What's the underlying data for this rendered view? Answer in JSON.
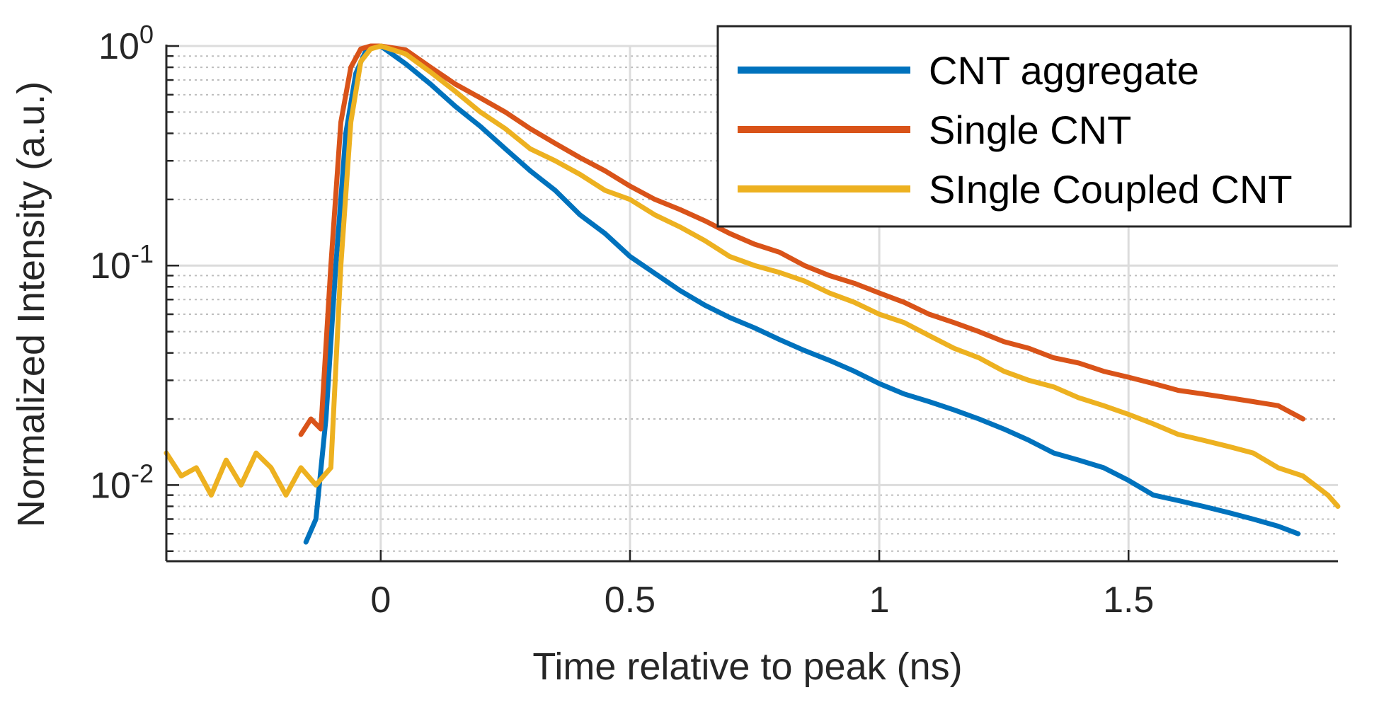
{
  "chart_data": {
    "type": "line",
    "xlabel": "Time relative to peak (ns)",
    "ylabel": "Normalized Intensity (a.u.)",
    "xlim": [
      -0.43,
      1.92
    ],
    "ylim": [
      0.0045,
      1.0
    ],
    "yscale": "log",
    "x_ticks": [
      0,
      0.5,
      1,
      1.5
    ],
    "x_tick_labels": [
      "0",
      "0.5",
      "1",
      "1.5"
    ],
    "y_ticks": [
      0.01,
      0.1,
      1
    ],
    "y_tick_labels": [
      {
        "base": "10",
        "exp": "-2"
      },
      {
        "base": "10",
        "exp": "-1"
      },
      {
        "base": "10",
        "exp": "0"
      }
    ],
    "grid": true,
    "minor_grid": true,
    "legend_position": "top-right",
    "series": [
      {
        "name": "CNT aggregate",
        "color": "#0072BD",
        "x": [
          -0.15,
          -0.13,
          -0.11,
          -0.09,
          -0.07,
          -0.05,
          -0.03,
          -0.01,
          0,
          0.05,
          0.1,
          0.15,
          0.2,
          0.25,
          0.3,
          0.35,
          0.4,
          0.45,
          0.5,
          0.55,
          0.6,
          0.65,
          0.7,
          0.75,
          0.8,
          0.85,
          0.9,
          0.95,
          1.0,
          1.05,
          1.1,
          1.15,
          1.2,
          1.25,
          1.3,
          1.35,
          1.4,
          1.45,
          1.5,
          1.55,
          1.6,
          1.65,
          1.7,
          1.75,
          1.8,
          1.84
        ],
        "y": [
          0.0055,
          0.007,
          0.02,
          0.1,
          0.4,
          0.75,
          0.95,
          1.0,
          1.0,
          0.83,
          0.67,
          0.53,
          0.43,
          0.34,
          0.27,
          0.22,
          0.17,
          0.14,
          0.11,
          0.092,
          0.077,
          0.066,
          0.058,
          0.052,
          0.046,
          0.041,
          0.037,
          0.033,
          0.029,
          0.026,
          0.024,
          0.022,
          0.02,
          0.018,
          0.016,
          0.014,
          0.013,
          0.012,
          0.0105,
          0.009,
          0.0085,
          0.008,
          0.0075,
          0.007,
          0.0065,
          0.006
        ]
      },
      {
        "name": "Single CNT",
        "color": "#D95319",
        "x": [
          -0.16,
          -0.14,
          -0.12,
          -0.1,
          -0.08,
          -0.06,
          -0.04,
          -0.02,
          0,
          0.05,
          0.1,
          0.15,
          0.2,
          0.25,
          0.3,
          0.35,
          0.4,
          0.45,
          0.5,
          0.55,
          0.6,
          0.65,
          0.7,
          0.75,
          0.8,
          0.85,
          0.9,
          0.95,
          1.0,
          1.05,
          1.1,
          1.15,
          1.2,
          1.25,
          1.3,
          1.35,
          1.4,
          1.45,
          1.5,
          1.55,
          1.6,
          1.65,
          1.7,
          1.75,
          1.8,
          1.85
        ],
        "y": [
          0.017,
          0.02,
          0.018,
          0.1,
          0.45,
          0.8,
          0.97,
          1.0,
          1.0,
          0.96,
          0.8,
          0.67,
          0.58,
          0.5,
          0.42,
          0.36,
          0.31,
          0.27,
          0.23,
          0.2,
          0.18,
          0.16,
          0.14,
          0.125,
          0.115,
          0.1,
          0.09,
          0.083,
          0.075,
          0.068,
          0.06,
          0.055,
          0.05,
          0.045,
          0.042,
          0.038,
          0.036,
          0.033,
          0.031,
          0.029,
          0.027,
          0.026,
          0.025,
          0.024,
          0.023,
          0.02
        ]
      },
      {
        "name": "SIngle Coupled CNT",
        "color": "#EDB120",
        "x": [
          -0.43,
          -0.4,
          -0.37,
          -0.34,
          -0.31,
          -0.28,
          -0.25,
          -0.22,
          -0.19,
          -0.16,
          -0.13,
          -0.1,
          -0.08,
          -0.06,
          -0.04,
          -0.02,
          0,
          0.05,
          0.1,
          0.15,
          0.2,
          0.25,
          0.3,
          0.35,
          0.4,
          0.45,
          0.5,
          0.55,
          0.6,
          0.65,
          0.7,
          0.75,
          0.8,
          0.85,
          0.9,
          0.95,
          1.0,
          1.05,
          1.1,
          1.15,
          1.2,
          1.25,
          1.3,
          1.35,
          1.4,
          1.45,
          1.5,
          1.55,
          1.6,
          1.65,
          1.7,
          1.75,
          1.8,
          1.85,
          1.9,
          1.92
        ],
        "y": [
          0.014,
          0.011,
          0.012,
          0.009,
          0.013,
          0.01,
          0.014,
          0.012,
          0.009,
          0.012,
          0.01,
          0.012,
          0.1,
          0.45,
          0.85,
          0.97,
          1.0,
          0.92,
          0.76,
          0.62,
          0.5,
          0.42,
          0.34,
          0.3,
          0.26,
          0.22,
          0.2,
          0.17,
          0.15,
          0.13,
          0.11,
          0.1,
          0.093,
          0.085,
          0.075,
          0.068,
          0.06,
          0.055,
          0.048,
          0.042,
          0.038,
          0.033,
          0.03,
          0.028,
          0.025,
          0.023,
          0.021,
          0.019,
          0.017,
          0.016,
          0.015,
          0.014,
          0.012,
          0.011,
          0.009,
          0.008
        ]
      }
    ]
  }
}
